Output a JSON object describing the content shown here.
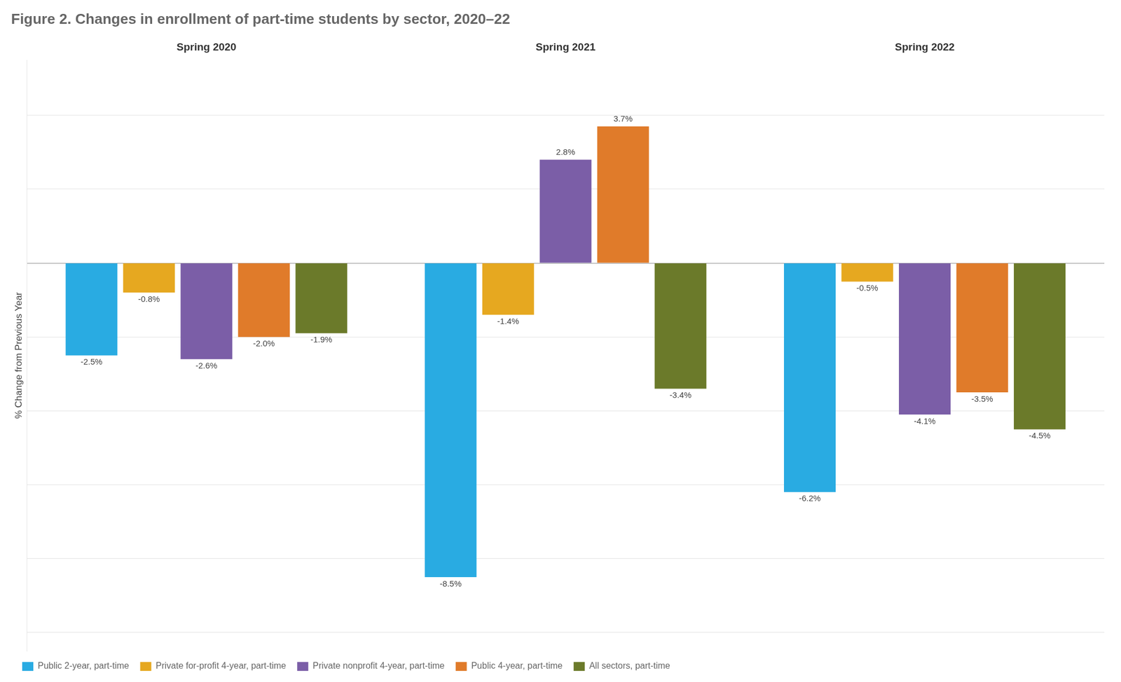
{
  "chart_data": {
    "type": "bar",
    "title": "Figure 2. Changes in enrollment of part-time students by sector, 2020–22",
    "ylabel": "% Change from Previous Year",
    "categories": [
      "Spring 2020",
      "Spring 2021",
      "Spring 2022"
    ],
    "series": [
      {
        "name": "Public 2-year, part-time",
        "color": "#29abe2",
        "values": [
          -2.5,
          -8.5,
          -6.2
        ],
        "value_labels": [
          "-2.5%",
          "-8.5%",
          "-6.2%"
        ]
      },
      {
        "name": "Private for-profit 4-year, part-time",
        "color": "#e6a820",
        "values": [
          -0.8,
          -1.4,
          -0.5
        ],
        "value_labels": [
          "-0.8%",
          "-1.4%",
          "-0.5%"
        ]
      },
      {
        "name": "Private nonprofit 4-year, part-time",
        "color": "#7b5ea7",
        "values": [
          -2.6,
          2.8,
          -4.1
        ],
        "value_labels": [
          "-2.6%",
          "2.8%",
          "-4.1%"
        ]
      },
      {
        "name": "Public 4-year, part-time",
        "color": "#e07b2a",
        "values": [
          -2.0,
          3.7,
          -3.5
        ],
        "value_labels": [
          "-2.0%",
          "3.7%",
          "-3.5%"
        ]
      },
      {
        "name": "All sectors, part-time",
        "color": "#6b7a2a",
        "values": [
          -1.9,
          -3.4,
          -4.5
        ],
        "value_labels": [
          "-1.9%",
          "-3.4%",
          "-4.5%"
        ]
      }
    ],
    "ylim": [
      -10.5,
      5.5
    ],
    "yticks": [
      -10,
      -8,
      -6,
      -4,
      -2,
      0,
      2,
      4
    ],
    "grid": true,
    "legend": "bottom",
    "data_labels": true,
    "tick_labels": "x"
  }
}
